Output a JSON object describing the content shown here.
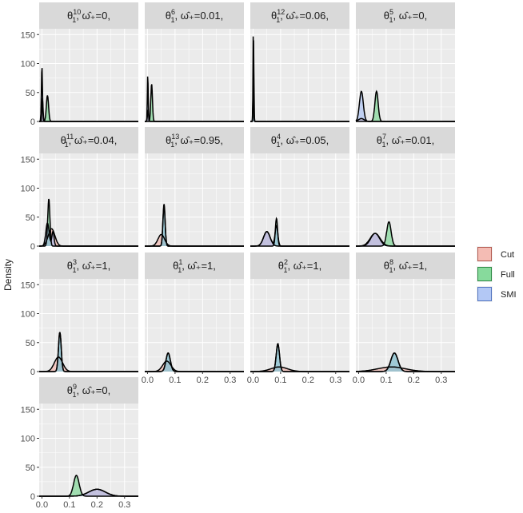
{
  "chart_data": {
    "type": "area",
    "ylabel": "Density",
    "ylim": [
      0,
      160
    ],
    "xlim": [
      -0.01,
      0.35
    ],
    "x_ticks": [
      0.0,
      0.1,
      0.2,
      0.3
    ],
    "x_tick_labels": [
      "0.0",
      "0.1",
      "0.2",
      "0.3"
    ],
    "y_ticks": [
      0,
      50,
      100,
      150
    ],
    "y_tick_labels": [
      "0",
      "50",
      "100",
      "150"
    ],
    "grid": true,
    "legend_position": "right",
    "legend": [
      {
        "name": "Cut",
        "fill": "#F4A99F",
        "stroke": "#B35A50"
      },
      {
        "name": "Full",
        "fill": "#63D17F",
        "stroke": "#2E8B46"
      },
      {
        "name": "SMI",
        "fill": "#9DB9F5",
        "stroke": "#5274C0"
      }
    ],
    "panels": [
      {
        "sub": "10",
        "omega": "0",
        "trail": ",",
        "series": [
          {
            "name": "Cut",
            "peaks": [
              [
                0.002,
                40,
                0.002
              ]
            ]
          },
          {
            "name": "Full",
            "peaks": [
              [
                0.02,
                45,
                0.004
              ]
            ]
          },
          {
            "name": "SMI",
            "peaks": [
              [
                0.0,
                95,
                0.002
              ]
            ]
          }
        ]
      },
      {
        "sub": "6",
        "omega": "0.01",
        "trail": ",",
        "series": [
          {
            "name": "Cut",
            "peaks": [
              [
                0.002,
                20,
                0.002
              ]
            ]
          },
          {
            "name": "Full",
            "peaks": [
              [
                0.015,
                65,
                0.003
              ]
            ]
          },
          {
            "name": "SMI",
            "peaks": [
              [
                0.001,
                82,
                0.0015
              ]
            ]
          }
        ]
      },
      {
        "sub": "12",
        "omega": "0.06",
        "trail": ",",
        "series": [
          {
            "name": "Cut",
            "peaks": [
              [
                0.001,
                60,
                0.0015
              ]
            ]
          },
          {
            "name": "Full",
            "peaks": [
              [
                0.002,
                140,
                0.0012
              ]
            ]
          },
          {
            "name": "SMI",
            "peaks": [
              [
                0.001,
                160,
                0.0012
              ]
            ]
          }
        ]
      },
      {
        "sub": "5",
        "omega": "0",
        "trail": ",",
        "series": [
          {
            "name": "Cut",
            "peaks": [
              [
                0.01,
                5,
                0.01
              ]
            ]
          },
          {
            "name": "Full",
            "peaks": [
              [
                0.065,
                52,
                0.006
              ]
            ]
          },
          {
            "name": "SMI",
            "peaks": [
              [
                0.01,
                52,
                0.007
              ]
            ]
          }
        ]
      },
      {
        "sub": "11",
        "omega": "0.04",
        "trail": ",",
        "series": [
          {
            "name": "Cut",
            "peaks": [
              [
                0.035,
                30,
                0.012
              ]
            ]
          },
          {
            "name": "Full",
            "peaks": [
              [
                0.025,
                82,
                0.004
              ]
            ]
          },
          {
            "name": "SMI",
            "peaks": [
              [
                0.02,
                40,
                0.006
              ],
              [
                0.04,
                25,
                0.004
              ]
            ]
          }
        ]
      },
      {
        "sub": "13",
        "omega": "0.95",
        "trail": ",",
        "series": [
          {
            "name": "Cut",
            "peaks": [
              [
                0.05,
                20,
                0.012
              ]
            ]
          },
          {
            "name": "Full",
            "peaks": [
              [
                0.06,
                73,
                0.004
              ]
            ]
          },
          {
            "name": "SMI",
            "peaks": [
              [
                0.06,
                70,
                0.004
              ]
            ]
          }
        ]
      },
      {
        "sub": "4",
        "omega": "0.05",
        "trail": ",",
        "series": [
          {
            "name": "Cut",
            "peaks": [
              [
                0.05,
                25,
                0.012
              ]
            ]
          },
          {
            "name": "Full",
            "peaks": [
              [
                0.085,
                48,
                0.004
              ]
            ]
          },
          {
            "name": "SMI",
            "peaks": [
              [
                0.05,
                25,
                0.012
              ],
              [
                0.085,
                35,
                0.005
              ]
            ]
          }
        ]
      },
      {
        "sub": "7",
        "omega": "0.01",
        "trail": ",",
        "series": [
          {
            "name": "Cut",
            "peaks": [
              [
                0.06,
                22,
                0.018
              ]
            ]
          },
          {
            "name": "Full",
            "peaks": [
              [
                0.11,
                42,
                0.008
              ]
            ]
          },
          {
            "name": "SMI",
            "peaks": [
              [
                0.06,
                22,
                0.016
              ]
            ]
          }
        ]
      },
      {
        "sub": "3",
        "omega": "1",
        "trail": ",",
        "series": [
          {
            "name": "Cut",
            "peaks": [
              [
                0.06,
                25,
                0.015
              ]
            ]
          },
          {
            "name": "Full",
            "peaks": [
              [
                0.065,
                68,
                0.005
              ]
            ]
          },
          {
            "name": "SMI",
            "peaks": [
              [
                0.065,
                68,
                0.005
              ]
            ]
          }
        ]
      },
      {
        "sub": "1",
        "omega": "1",
        "trail": ",",
        "series": [
          {
            "name": "Cut",
            "peaks": [
              [
                0.07,
                18,
                0.015
              ]
            ]
          },
          {
            "name": "Full",
            "peaks": [
              [
                0.075,
                32,
                0.008
              ]
            ]
          },
          {
            "name": "SMI",
            "peaks": [
              [
                0.075,
                32,
                0.008
              ]
            ]
          }
        ]
      },
      {
        "sub": "2",
        "omega": "1",
        "trail": ",",
        "series": [
          {
            "name": "Cut",
            "peaks": [
              [
                0.095,
                8,
                0.03
              ]
            ]
          },
          {
            "name": "Full",
            "peaks": [
              [
                0.09,
                48,
                0.006
              ]
            ]
          },
          {
            "name": "SMI",
            "peaks": [
              [
                0.09,
                48,
                0.006
              ]
            ]
          }
        ]
      },
      {
        "sub": "8",
        "omega": "1",
        "trail": ",",
        "series": [
          {
            "name": "Cut",
            "peaks": [
              [
                0.12,
                8,
                0.05
              ]
            ]
          },
          {
            "name": "Full",
            "peaks": [
              [
                0.13,
                32,
                0.013
              ]
            ]
          },
          {
            "name": "SMI",
            "peaks": [
              [
                0.13,
                32,
                0.013
              ]
            ]
          }
        ]
      },
      {
        "sub": "9",
        "omega": "0",
        "trail": ",",
        "series": [
          {
            "name": "Cut",
            "peaks": [
              [
                0.2,
                12,
                0.03
              ]
            ]
          },
          {
            "name": "Full",
            "peaks": [
              [
                0.125,
                36,
                0.01
              ]
            ]
          },
          {
            "name": "SMI",
            "peaks": [
              [
                0.2,
                12,
                0.03
              ]
            ]
          }
        ]
      }
    ]
  }
}
